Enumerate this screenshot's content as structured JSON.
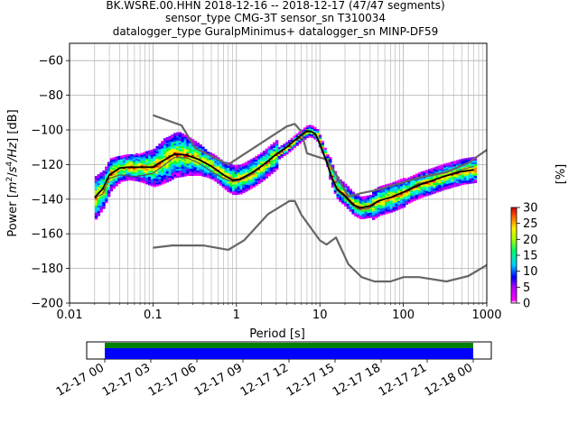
{
  "chart_data": {
    "type": "heatmap",
    "title_lines": [
      "BK.WSRE.00.HHN   2018-12-16 -- 2018-12-17  (47/47 segments)",
      "sensor_type CMG-3T sensor_sn T310034",
      "datalogger_type GuralpMinimus+ datalogger_sn MINP-DF59"
    ],
    "xlabel": "Period [s]",
    "ylabel_parts": [
      "Power [",
      "m",
      "2",
      "/",
      "s",
      "4",
      "/",
      "Hz",
      "] [dB]"
    ],
    "x_scale": "log",
    "xlim": [
      0.01,
      1000
    ],
    "ylim": [
      -200,
      -50
    ],
    "x_ticks": [
      {
        "value": 0.01,
        "label": "0.01"
      },
      {
        "value": 0.1,
        "label": "0.1"
      },
      {
        "value": 1,
        "label": "1"
      },
      {
        "value": 10,
        "label": "10"
      },
      {
        "value": 100,
        "label": "100"
      },
      {
        "value": 1000,
        "label": "1000"
      }
    ],
    "y_ticks": [
      -60,
      -80,
      -100,
      -120,
      -140,
      -160,
      -180,
      -200
    ],
    "grid": true,
    "colorbar": {
      "label": "[%]",
      "ticks": [
        0,
        5,
        10,
        15,
        20,
        25,
        30
      ],
      "range": [
        0,
        30
      ]
    },
    "noise_model_high": [
      [
        0.1,
        -91.5
      ],
      [
        0.22,
        -97.4
      ],
      [
        0.32,
        -110.5
      ],
      [
        0.8,
        -120
      ],
      [
        4,
        -98
      ],
      [
        5,
        -96.5
      ],
      [
        6,
        -101
      ],
      [
        7,
        -113.5
      ],
      [
        10,
        -116
      ],
      [
        12,
        -117
      ],
      [
        15.6,
        -125.5
      ],
      [
        21.9,
        -138.5
      ],
      [
        31.6,
        -136.5
      ],
      [
        45,
        -135
      ],
      [
        70,
        -132.3
      ],
      [
        101,
        -130.2
      ],
      [
        154,
        -127.5
      ],
      [
        328,
        -124.5
      ],
      [
        600,
        -119
      ],
      [
        1000,
        -111.5
      ]
    ],
    "noise_model_low": [
      [
        0.1,
        -168
      ],
      [
        0.17,
        -166.7
      ],
      [
        0.4,
        -166.7
      ],
      [
        0.8,
        -169.2
      ],
      [
        1.24,
        -163.7
      ],
      [
        2.4,
        -148.6
      ],
      [
        4.3,
        -141.1
      ],
      [
        5,
        -141.1
      ],
      [
        6,
        -149
      ],
      [
        10,
        -163.8
      ],
      [
        12,
        -166.2
      ],
      [
        15.6,
        -162.1
      ],
      [
        21.9,
        -177.5
      ],
      [
        31.6,
        -185
      ],
      [
        45,
        -187.5
      ],
      [
        70,
        -187.5
      ],
      [
        101,
        -185
      ],
      [
        154,
        -185
      ],
      [
        328,
        -187.5
      ],
      [
        600,
        -184.4
      ],
      [
        1000,
        -178
      ]
    ],
    "mean_psd": [
      [
        0.02,
        -139
      ],
      [
        0.025,
        -134
      ],
      [
        0.03,
        -126
      ],
      [
        0.04,
        -122
      ],
      [
        0.05,
        -121.5
      ],
      [
        0.07,
        -121.5
      ],
      [
        0.1,
        -121.5
      ],
      [
        0.13,
        -118
      ],
      [
        0.18,
        -114
      ],
      [
        0.25,
        -114.5
      ],
      [
        0.35,
        -117
      ],
      [
        0.5,
        -121
      ],
      [
        0.7,
        -126
      ],
      [
        0.9,
        -129
      ],
      [
        1.1,
        -128.5
      ],
      [
        1.5,
        -125
      ],
      [
        2,
        -121
      ],
      [
        3,
        -114
      ],
      [
        4,
        -110
      ],
      [
        5,
        -106
      ],
      [
        6,
        -103
      ],
      [
        7,
        -100.5
      ],
      [
        8,
        -101
      ],
      [
        9,
        -103
      ],
      [
        10,
        -108
      ],
      [
        12,
        -118
      ],
      [
        14,
        -128
      ],
      [
        16,
        -134
      ],
      [
        20,
        -138
      ],
      [
        25,
        -143
      ],
      [
        30,
        -145
      ],
      [
        40,
        -144
      ],
      [
        50,
        -141
      ],
      [
        70,
        -139
      ],
      [
        100,
        -136
      ],
      [
        150,
        -132
      ],
      [
        200,
        -130
      ],
      [
        300,
        -127
      ],
      [
        500,
        -124
      ],
      [
        700,
        -123
      ]
    ],
    "mode_psd": [
      [
        0.02,
        -139
      ],
      [
        0.025,
        -137
      ],
      [
        0.03,
        -128
      ],
      [
        0.04,
        -126
      ],
      [
        0.06,
        -127
      ],
      [
        0.08,
        -126
      ],
      [
        0.1,
        -125
      ],
      [
        0.13,
        -121
      ],
      [
        0.18,
        -116
      ],
      [
        0.25,
        -116
      ],
      [
        0.35,
        -119
      ],
      [
        0.5,
        -124
      ],
      [
        0.7,
        -128
      ],
      [
        0.9,
        -130
      ],
      [
        1.1,
        -129
      ],
      [
        1.5,
        -126
      ],
      [
        2,
        -121
      ],
      [
        3,
        -114
      ],
      [
        4,
        -110
      ],
      [
        5,
        -106
      ],
      [
        6,
        -103
      ],
      [
        7,
        -100.5
      ],
      [
        8,
        -101
      ],
      [
        9,
        -103.5
      ],
      [
        10,
        -109
      ],
      [
        12,
        -119
      ],
      [
        14,
        -129
      ],
      [
        16,
        -135
      ],
      [
        20,
        -139
      ],
      [
        25,
        -144
      ],
      [
        30,
        -146
      ],
      [
        40,
        -145
      ],
      [
        50,
        -141
      ],
      [
        70,
        -139
      ],
      [
        100,
        -136
      ],
      [
        150,
        -131
      ],
      [
        200,
        -130
      ],
      [
        300,
        -127
      ],
      [
        500,
        -123
      ],
      [
        700,
        -121
      ]
    ],
    "timeline": {
      "tick_labels": [
        "12-17 00",
        "12-17 03",
        "12-17 06",
        "12-17 09",
        "12-17 12",
        "12-17 15",
        "12-17 18",
        "12-17 21",
        "12-18 00"
      ],
      "coverage_start_label": "12-17 00",
      "coverage_end_label": "12-18 00",
      "colors": [
        "#008000",
        "#0000ff"
      ]
    }
  }
}
